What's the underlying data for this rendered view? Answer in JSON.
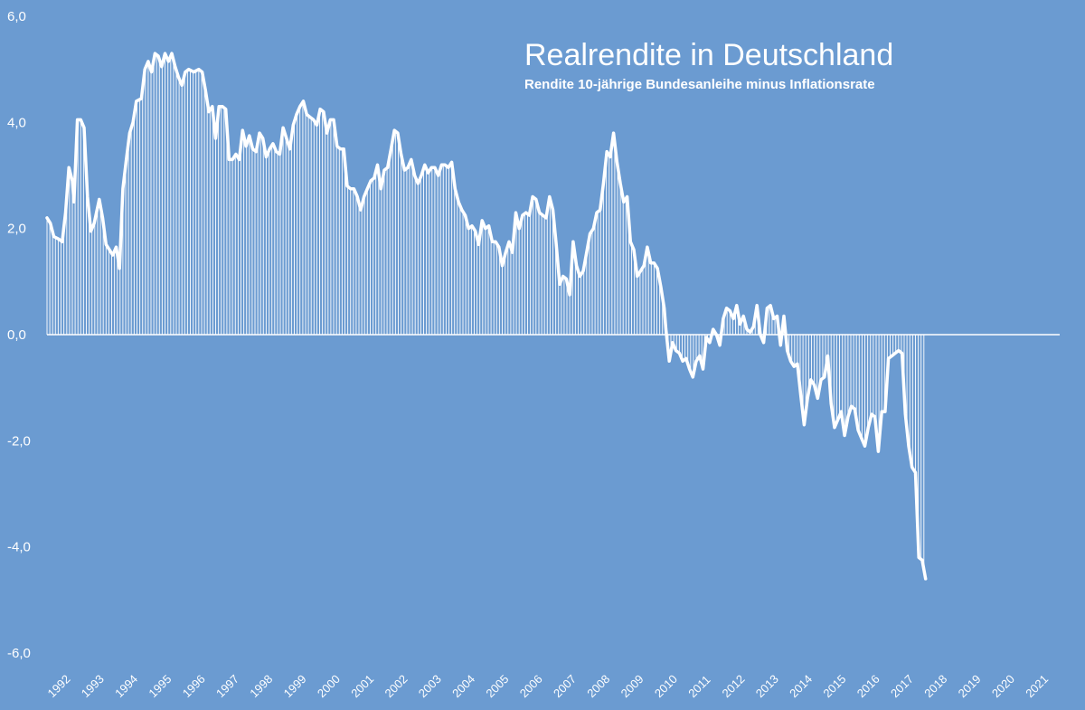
{
  "colors": {
    "background": "#6b9bd1",
    "line": "#ffffff",
    "bars": "#ffffff"
  },
  "chart_data": {
    "type": "area",
    "title": "Realrendite in Deutschland",
    "subtitle": "Rendite 10-jährige Bundesanleihe minus Inflationsrate",
    "xlabel": "",
    "ylabel": "",
    "ylim": [
      -6,
      6
    ],
    "y_ticks": [
      "6,0",
      "4,0",
      "2,0",
      "0,0",
      "-2,0",
      "-4,0",
      "-6,0"
    ],
    "y_tick_values": [
      6,
      4,
      2,
      0,
      -2,
      -4,
      -6
    ],
    "x_labels": [
      "1992",
      "1993",
      "1994",
      "1995",
      "1996",
      "1997",
      "1998",
      "1999",
      "2000",
      "2001",
      "2002",
      "2003",
      "2004",
      "2005",
      "2006",
      "2007",
      "2008",
      "2009",
      "2010",
      "2011",
      "2012",
      "2013",
      "2014",
      "2015",
      "2016",
      "2017",
      "2018",
      "2019",
      "2020",
      "2021"
    ],
    "grid": false,
    "legend": "none",
    "series": [
      {
        "points": [
          [
            1992.0,
            2.2
          ],
          [
            1992.1,
            2.1
          ],
          [
            1992.2,
            1.85
          ],
          [
            1992.35,
            1.8
          ],
          [
            1992.45,
            1.75
          ],
          [
            1992.55,
            2.3
          ],
          [
            1992.65,
            3.15
          ],
          [
            1992.75,
            2.9
          ],
          [
            1992.8,
            2.5
          ],
          [
            1992.9,
            4.05
          ],
          [
            1993.0,
            4.05
          ],
          [
            1993.1,
            3.9
          ],
          [
            1993.2,
            2.6
          ],
          [
            1993.3,
            1.95
          ],
          [
            1993.4,
            2.1
          ],
          [
            1993.55,
            2.55
          ],
          [
            1993.65,
            2.2
          ],
          [
            1993.75,
            1.7
          ],
          [
            1993.85,
            1.6
          ],
          [
            1993.95,
            1.5
          ],
          [
            1994.05,
            1.65
          ],
          [
            1994.15,
            1.25
          ],
          [
            1994.25,
            2.75
          ],
          [
            1994.35,
            3.3
          ],
          [
            1994.45,
            3.8
          ],
          [
            1994.55,
            4.0
          ],
          [
            1994.65,
            4.4
          ],
          [
            1994.8,
            4.45
          ],
          [
            1994.9,
            5.0
          ],
          [
            1995.0,
            5.15
          ],
          [
            1995.1,
            4.95
          ],
          [
            1995.2,
            5.3
          ],
          [
            1995.3,
            5.25
          ],
          [
            1995.4,
            5.05
          ],
          [
            1995.5,
            5.3
          ],
          [
            1995.6,
            5.15
          ],
          [
            1995.7,
            5.3
          ],
          [
            1995.8,
            5.05
          ],
          [
            1995.9,
            4.85
          ],
          [
            1996.0,
            4.7
          ],
          [
            1996.1,
            4.95
          ],
          [
            1996.2,
            5.0
          ],
          [
            1996.35,
            4.95
          ],
          [
            1996.5,
            5.0
          ],
          [
            1996.6,
            4.95
          ],
          [
            1996.7,
            4.6
          ],
          [
            1996.8,
            4.2
          ],
          [
            1996.9,
            4.3
          ],
          [
            1997.0,
            3.7
          ],
          [
            1997.1,
            4.3
          ],
          [
            1997.2,
            4.3
          ],
          [
            1997.3,
            4.25
          ],
          [
            1997.4,
            3.3
          ],
          [
            1997.5,
            3.3
          ],
          [
            1997.6,
            3.4
          ],
          [
            1997.7,
            3.3
          ],
          [
            1997.8,
            3.85
          ],
          [
            1997.9,
            3.55
          ],
          [
            1998.0,
            3.75
          ],
          [
            1998.1,
            3.5
          ],
          [
            1998.2,
            3.45
          ],
          [
            1998.3,
            3.8
          ],
          [
            1998.4,
            3.7
          ],
          [
            1998.5,
            3.35
          ],
          [
            1998.6,
            3.5
          ],
          [
            1998.7,
            3.6
          ],
          [
            1998.8,
            3.45
          ],
          [
            1998.9,
            3.4
          ],
          [
            1999.0,
            3.9
          ],
          [
            1999.1,
            3.7
          ],
          [
            1999.2,
            3.5
          ],
          [
            1999.3,
            3.95
          ],
          [
            1999.4,
            4.15
          ],
          [
            1999.5,
            4.3
          ],
          [
            1999.6,
            4.4
          ],
          [
            1999.7,
            4.15
          ],
          [
            1999.8,
            4.1
          ],
          [
            1999.9,
            4.05
          ],
          [
            2000.0,
            3.95
          ],
          [
            2000.1,
            4.25
          ],
          [
            2000.2,
            4.2
          ],
          [
            2000.3,
            3.8
          ],
          [
            2000.4,
            4.05
          ],
          [
            2000.5,
            4.05
          ],
          [
            2000.6,
            3.55
          ],
          [
            2000.7,
            3.5
          ],
          [
            2000.8,
            3.5
          ],
          [
            2000.9,
            2.8
          ],
          [
            2001.0,
            2.75
          ],
          [
            2001.1,
            2.75
          ],
          [
            2001.2,
            2.6
          ],
          [
            2001.3,
            2.35
          ],
          [
            2001.4,
            2.6
          ],
          [
            2001.5,
            2.75
          ],
          [
            2001.6,
            2.9
          ],
          [
            2001.7,
            2.95
          ],
          [
            2001.8,
            3.2
          ],
          [
            2001.9,
            2.75
          ],
          [
            2002.0,
            3.1
          ],
          [
            2002.1,
            3.15
          ],
          [
            2002.2,
            3.5
          ],
          [
            2002.3,
            3.85
          ],
          [
            2002.4,
            3.8
          ],
          [
            2002.5,
            3.4
          ],
          [
            2002.6,
            3.1
          ],
          [
            2002.7,
            3.15
          ],
          [
            2002.8,
            3.3
          ],
          [
            2002.9,
            3.0
          ],
          [
            2003.0,
            2.85
          ],
          [
            2003.1,
            3.0
          ],
          [
            2003.2,
            3.2
          ],
          [
            2003.3,
            3.05
          ],
          [
            2003.4,
            3.15
          ],
          [
            2003.5,
            3.15
          ],
          [
            2003.6,
            3.0
          ],
          [
            2003.7,
            3.2
          ],
          [
            2003.8,
            3.2
          ],
          [
            2003.9,
            3.15
          ],
          [
            2004.0,
            3.25
          ],
          [
            2004.1,
            2.75
          ],
          [
            2004.2,
            2.5
          ],
          [
            2004.3,
            2.35
          ],
          [
            2004.4,
            2.25
          ],
          [
            2004.5,
            2.0
          ],
          [
            2004.6,
            2.05
          ],
          [
            2004.7,
            1.95
          ],
          [
            2004.8,
            1.7
          ],
          [
            2004.9,
            2.15
          ],
          [
            2005.0,
            2.0
          ],
          [
            2005.1,
            2.05
          ],
          [
            2005.2,
            1.75
          ],
          [
            2005.3,
            1.75
          ],
          [
            2005.4,
            1.65
          ],
          [
            2005.5,
            1.3
          ],
          [
            2005.6,
            1.55
          ],
          [
            2005.7,
            1.75
          ],
          [
            2005.8,
            1.55
          ],
          [
            2005.9,
            2.3
          ],
          [
            2006.0,
            2.0
          ],
          [
            2006.1,
            2.25
          ],
          [
            2006.2,
            2.3
          ],
          [
            2006.3,
            2.25
          ],
          [
            2006.4,
            2.6
          ],
          [
            2006.5,
            2.55
          ],
          [
            2006.6,
            2.3
          ],
          [
            2006.7,
            2.25
          ],
          [
            2006.8,
            2.2
          ],
          [
            2006.9,
            2.6
          ],
          [
            2007.0,
            2.35
          ],
          [
            2007.1,
            1.7
          ],
          [
            2007.2,
            0.95
          ],
          [
            2007.3,
            1.1
          ],
          [
            2007.4,
            1.05
          ],
          [
            2007.5,
            0.75
          ],
          [
            2007.6,
            1.75
          ],
          [
            2007.7,
            1.3
          ],
          [
            2007.8,
            1.1
          ],
          [
            2007.9,
            1.2
          ],
          [
            2008.0,
            1.55
          ],
          [
            2008.1,
            1.9
          ],
          [
            2008.2,
            2.0
          ],
          [
            2008.3,
            2.3
          ],
          [
            2008.4,
            2.35
          ],
          [
            2008.5,
            2.85
          ],
          [
            2008.6,
            3.45
          ],
          [
            2008.7,
            3.35
          ],
          [
            2008.8,
            3.8
          ],
          [
            2008.9,
            3.25
          ],
          [
            2009.0,
            2.85
          ],
          [
            2009.1,
            2.5
          ],
          [
            2009.2,
            2.6
          ],
          [
            2009.3,
            1.75
          ],
          [
            2009.4,
            1.6
          ],
          [
            2009.5,
            1.1
          ],
          [
            2009.6,
            1.2
          ],
          [
            2009.7,
            1.3
          ],
          [
            2009.8,
            1.65
          ],
          [
            2009.9,
            1.35
          ],
          [
            2010.0,
            1.35
          ],
          [
            2010.1,
            1.25
          ],
          [
            2010.2,
            0.9
          ],
          [
            2010.3,
            0.5
          ],
          [
            2010.35,
            0.1
          ],
          [
            2010.45,
            -0.5
          ],
          [
            2010.55,
            -0.15
          ],
          [
            2010.65,
            -0.3
          ],
          [
            2010.75,
            -0.35
          ],
          [
            2010.85,
            -0.5
          ],
          [
            2010.95,
            -0.45
          ],
          [
            2011.05,
            -0.65
          ],
          [
            2011.15,
            -0.8
          ],
          [
            2011.25,
            -0.5
          ],
          [
            2011.35,
            -0.4
          ],
          [
            2011.45,
            -0.65
          ],
          [
            2011.55,
            -0.05
          ],
          [
            2011.65,
            -0.15
          ],
          [
            2011.75,
            0.1
          ],
          [
            2011.85,
            0.0
          ],
          [
            2011.95,
            -0.2
          ],
          [
            2012.05,
            0.3
          ],
          [
            2012.15,
            0.5
          ],
          [
            2012.25,
            0.45
          ],
          [
            2012.35,
            0.3
          ],
          [
            2012.45,
            0.55
          ],
          [
            2012.55,
            0.2
          ],
          [
            2012.65,
            0.35
          ],
          [
            2012.75,
            0.1
          ],
          [
            2012.85,
            0.05
          ],
          [
            2012.95,
            0.15
          ],
          [
            2013.05,
            0.55
          ],
          [
            2013.15,
            0.0
          ],
          [
            2013.25,
            -0.15
          ],
          [
            2013.35,
            0.5
          ],
          [
            2013.45,
            0.55
          ],
          [
            2013.55,
            0.3
          ],
          [
            2013.65,
            0.35
          ],
          [
            2013.75,
            -0.2
          ],
          [
            2013.85,
            0.35
          ],
          [
            2013.95,
            -0.3
          ],
          [
            2014.05,
            -0.5
          ],
          [
            2014.15,
            -0.6
          ],
          [
            2014.25,
            -0.55
          ],
          [
            2014.35,
            -1.15
          ],
          [
            2014.45,
            -1.7
          ],
          [
            2014.55,
            -1.2
          ],
          [
            2014.65,
            -0.85
          ],
          [
            2014.75,
            -0.95
          ],
          [
            2014.85,
            -1.2
          ],
          [
            2014.95,
            -0.85
          ],
          [
            2015.05,
            -0.8
          ],
          [
            2015.15,
            -0.4
          ],
          [
            2015.25,
            -1.3
          ],
          [
            2015.35,
            -1.75
          ],
          [
            2015.45,
            -1.6
          ],
          [
            2015.55,
            -1.45
          ],
          [
            2015.65,
            -1.9
          ],
          [
            2015.75,
            -1.55
          ],
          [
            2015.85,
            -1.35
          ],
          [
            2015.95,
            -1.4
          ],
          [
            2016.05,
            -1.8
          ],
          [
            2016.15,
            -1.95
          ],
          [
            2016.25,
            -2.1
          ],
          [
            2016.35,
            -1.75
          ],
          [
            2016.45,
            -1.5
          ],
          [
            2016.55,
            -1.55
          ],
          [
            2016.65,
            -2.2
          ],
          [
            2016.75,
            -1.45
          ],
          [
            2016.85,
            -1.45
          ],
          [
            2016.95,
            -0.45
          ],
          [
            2017.05,
            -0.4
          ],
          [
            2017.15,
            -0.35
          ],
          [
            2017.25,
            -0.3
          ],
          [
            2017.35,
            -0.35
          ],
          [
            2017.45,
            -1.5
          ],
          [
            2017.55,
            -2.1
          ],
          [
            2017.65,
            -2.5
          ],
          [
            2017.75,
            -2.6
          ],
          [
            2017.85,
            -4.2
          ],
          [
            2017.95,
            -4.25
          ],
          [
            2018.05,
            -4.6
          ]
        ]
      }
    ]
  }
}
